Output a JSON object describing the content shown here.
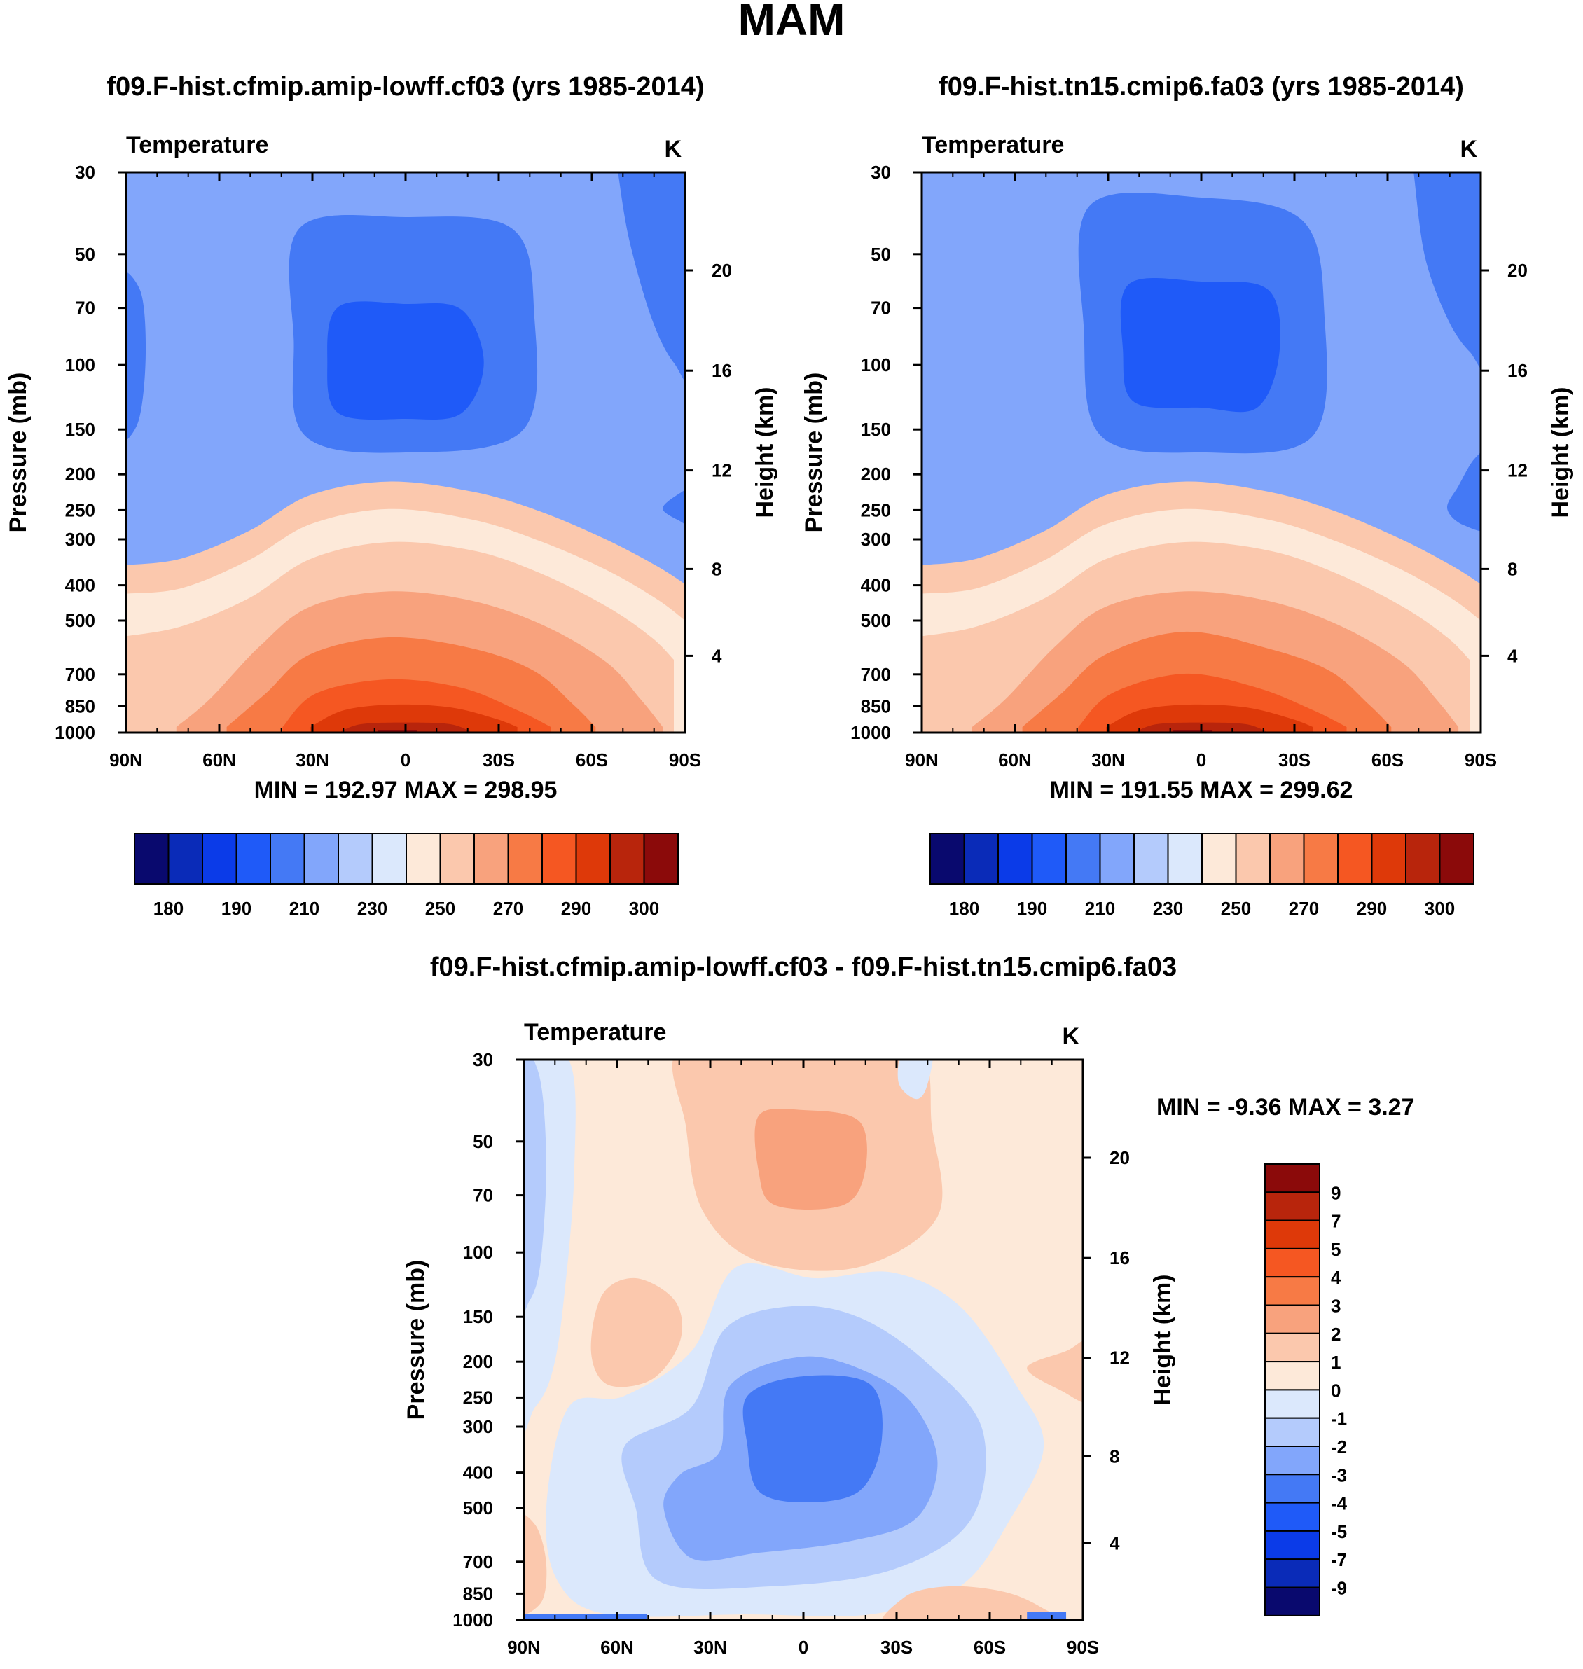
{
  "figure_title": "MAM",
  "chart_data": [
    {
      "type": "contour",
      "title": "f09.F-hist.cfmip.amip-lowff.cf03 (yrs 1985-2014)",
      "variable": "Temperature",
      "units": "K",
      "xlabel": "",
      "ylabel": "Pressure (mb)",
      "ylabel_right": "Height (km)",
      "x_ticks": [
        "90N",
        "60N",
        "30N",
        "0",
        "30S",
        "60S",
        "90S"
      ],
      "y_ticks": [
        "30",
        "50",
        "70",
        "100",
        "150",
        "200",
        "250",
        "300",
        "400",
        "500",
        "700",
        "850",
        "1000"
      ],
      "y_ticks_right": [
        "20",
        "16",
        "12",
        "8",
        "4"
      ],
      "min_max": "MIN = 192.97  MAX = 298.95",
      "colorbar_labels": [
        "180",
        "190",
        "210",
        "230",
        "250",
        "270",
        "290",
        "300"
      ],
      "colorbar_colors": [
        "#09096e",
        "#0a2bb8",
        "#0b3be8",
        "#1f5af8",
        "#4479f5",
        "#82a6fb",
        "#b4cbfc",
        "#dbe8fc",
        "#fde9d9",
        "#fbc8ad",
        "#f8a27d",
        "#f77a45",
        "#f55722",
        "#de3909",
        "#b8250c",
        "#8b0a0a"
      ]
    },
    {
      "type": "contour",
      "title": "f09.F-hist.tn15.cmip6.fa03 (yrs 1985-2014)",
      "variable": "Temperature",
      "units": "K",
      "xlabel": "",
      "ylabel": "Pressure (mb)",
      "ylabel_right": "Height (km)",
      "x_ticks": [
        "90N",
        "60N",
        "30N",
        "0",
        "30S",
        "60S",
        "90S"
      ],
      "y_ticks": [
        "30",
        "50",
        "70",
        "100",
        "150",
        "200",
        "250",
        "300",
        "400",
        "500",
        "700",
        "850",
        "1000"
      ],
      "y_ticks_right": [
        "20",
        "16",
        "12",
        "8",
        "4"
      ],
      "min_max": "MIN = 191.55  MAX = 299.62",
      "colorbar_labels": [
        "180",
        "190",
        "210",
        "230",
        "250",
        "270",
        "290",
        "300"
      ],
      "colorbar_colors": [
        "#09096e",
        "#0a2bb8",
        "#0b3be8",
        "#1f5af8",
        "#4479f5",
        "#82a6fb",
        "#b4cbfc",
        "#dbe8fc",
        "#fde9d9",
        "#fbc8ad",
        "#f8a27d",
        "#f77a45",
        "#f55722",
        "#de3909",
        "#b8250c",
        "#8b0a0a"
      ]
    },
    {
      "type": "contour",
      "title": "f09.F-hist.cfmip.amip-lowff.cf03 - f09.F-hist.tn15.cmip6.fa03",
      "variable": "Temperature",
      "units": "K",
      "xlabel": "",
      "ylabel": "Pressure (mb)",
      "ylabel_right": "Height (km)",
      "x_ticks": [
        "90N",
        "60N",
        "30N",
        "0",
        "30S",
        "60S",
        "90S"
      ],
      "y_ticks": [
        "30",
        "50",
        "70",
        "100",
        "150",
        "200",
        "250",
        "300",
        "400",
        "500",
        "700",
        "850",
        "1000"
      ],
      "y_ticks_right": [
        "20",
        "16",
        "12",
        "8",
        "4"
      ],
      "min_max": "MIN =  -9.36  MAX =   3.27",
      "colorbar_labels": [
        "9",
        "7",
        "5",
        "4",
        "3",
        "2",
        "1",
        "0",
        "-1",
        "-2",
        "-3",
        "-4",
        "-5",
        "-7",
        "-9"
      ],
      "colorbar_colors": [
        "#8b0a0a",
        "#b8250c",
        "#de3909",
        "#f55722",
        "#f77a45",
        "#f8a27d",
        "#fbc8ad",
        "#fde9d9",
        "#dbe8fc",
        "#b4cbfc",
        "#82a6fb",
        "#4479f5",
        "#1f5af8",
        "#0b3be8",
        "#0a2bb8",
        "#09096e"
      ]
    }
  ]
}
